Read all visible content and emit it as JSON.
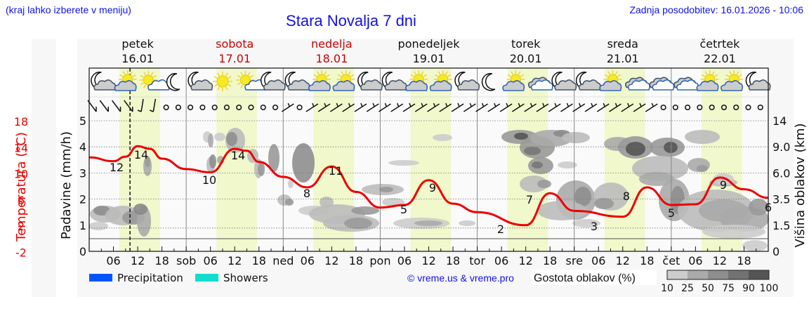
{
  "header": {
    "location_hint": "(kraj lahko izberete v meniju)",
    "title": "Stara Novalja 7 dni",
    "last_update": "Zadnja posodobitev: 16.01.2026 - 10:06"
  },
  "colors": {
    "title_blue": "#1010ee",
    "temperature_red": "#ee0000",
    "weekend_red": "#cc0000",
    "daylight_band": "#f0f8cc",
    "plot_bg": "#f9f9f9",
    "precipitation": "#0055ff",
    "showers": "#11ddcc"
  },
  "days": [
    {
      "name": "petek",
      "date": "16.01",
      "weekend": false,
      "short": ""
    },
    {
      "name": "sobota",
      "date": "17.01",
      "weekend": true,
      "short": "sob"
    },
    {
      "name": "nedelja",
      "date": "18.01",
      "weekend": true,
      "short": "ned"
    },
    {
      "name": "ponedeljek",
      "date": "19.01",
      "weekend": false,
      "short": "pon"
    },
    {
      "name": "torek",
      "date": "20.01",
      "weekend": false,
      "short": "tor"
    },
    {
      "name": "sreda",
      "date": "21.01",
      "weekend": false,
      "short": "sre"
    },
    {
      "name": "četrtek",
      "date": "22.01",
      "weekend": false,
      "short": "čet"
    }
  ],
  "weather_icons": [
    "moon-cloud",
    "sun-cloud",
    "sun-small-cloud",
    "moon",
    "moon-cloud",
    "sun",
    "sun-small-cloud",
    "moon-cloud",
    "moon-cloud",
    "sun-cloud",
    "sun-cloud",
    "moon-cloud",
    "moon-cloud",
    "sun-cloud",
    "sun-cloud",
    "moon-cloud",
    "moon",
    "sun-cloud",
    "cloud",
    "moon-cloud",
    "moon-cloud",
    "sun-cloud",
    "cloud",
    "cloud",
    "cloud",
    "sun-cloud",
    "sun-cloud",
    "moon-cloud"
  ],
  "wind": "barbs every 3h: NW/N light on Fri morning, calm Fri afternoon–Sat, SW light barbs from Sun morning to Thu morning, calm Thu",
  "legend": {
    "precipitation": "Precipitation",
    "showers": "Showers",
    "cloud_density_title": "Gostota oblakov (%)",
    "cloud_density_ticks": [
      "10",
      "25",
      "50",
      "75",
      "90",
      "100"
    ],
    "cloud_density_colors": [
      "#cccccc",
      "#aaaaaa",
      "#8e8e8e",
      "#727272",
      "#555555"
    ]
  },
  "credit": "© vreme.us & vreme.pro",
  "chart_data": {
    "type": "line",
    "title": "Stara Novalja 7 dni",
    "x_tick_labels": [
      "06",
      "12",
      "18",
      "sob",
      "06",
      "12",
      "18",
      "ned",
      "06",
      "12",
      "18",
      "pon",
      "06",
      "12",
      "18",
      "tor",
      "06",
      "12",
      "18",
      "sre",
      "06",
      "12",
      "18",
      "čet",
      "06",
      "12",
      "18"
    ],
    "now_marker": "16.01 10:06",
    "left_axis_temperature": {
      "label": "Temperatura (°C)",
      "ticks": [
        "18",
        "14",
        "10",
        "6",
        "2",
        "-2"
      ],
      "range": [
        -2,
        20
      ]
    },
    "left_axis_precipitation": {
      "label": "Padavine (mm/h)",
      "ticks": [
        "5",
        "4",
        "3",
        "2",
        "1",
        "0"
      ],
      "range": [
        0,
        5.2
      ]
    },
    "right_axis_cloud_height": {
      "label": "Višina oblakov (km)",
      "ticks": [
        "14",
        "9.0",
        "6.0",
        "3.5",
        "1.5",
        "0"
      ]
    },
    "series": [
      {
        "name": "Temperatura",
        "unit": "°C",
        "points_hours": [
          0,
          6,
          9,
          12,
          15,
          18,
          24,
          30,
          36,
          39,
          42,
          48,
          54,
          60,
          66,
          72,
          78,
          84,
          90,
          96,
          108,
          114,
          120,
          132,
          138,
          144,
          150,
          156,
          162,
          168
        ],
        "values": [
          12.4,
          11.8,
          12.5,
          14.1,
          13.7,
          12.2,
          10.6,
          10.1,
          13.7,
          13.4,
          11.7,
          9.4,
          7.8,
          11.0,
          7.1,
          4.7,
          5.1,
          8.9,
          5.3,
          4.0,
          2.0,
          6.9,
          4.2,
          3.3,
          7.8,
          5.1,
          5.2,
          9.3,
          7.5,
          6.2
        ],
        "labels": [
          {
            "hour": 5,
            "value": "12"
          },
          {
            "hour": 11,
            "value": "14"
          },
          {
            "hour": 29,
            "value": "10"
          },
          {
            "hour": 35,
            "value": "14"
          },
          {
            "hour": 53,
            "value": "8"
          },
          {
            "hour": 59,
            "value": "11"
          },
          {
            "hour": 78,
            "value": "5"
          },
          {
            "hour": 85,
            "value": "9"
          },
          {
            "hour": 102,
            "value": "2"
          },
          {
            "hour": 108,
            "value": "7"
          },
          {
            "hour": 127,
            "value": "3"
          },
          {
            "hour": 132,
            "value": "8"
          },
          {
            "hour": 146,
            "value": "5"
          },
          {
            "hour": 156,
            "value": "9"
          },
          {
            "hour": 168,
            "value": "6"
          }
        ]
      },
      {
        "name": "Precipitation",
        "values": []
      },
      {
        "name": "Showers",
        "values": []
      }
    ],
    "cloud_density": "grey shaded areas: low clouds 1.5–3.5 km Fri/Sun/Mon, mid-high clouds 6–14 km Tue–Wed, broad cloud 1.5–3.5 km Wed–Thu",
    "grid": true
  }
}
